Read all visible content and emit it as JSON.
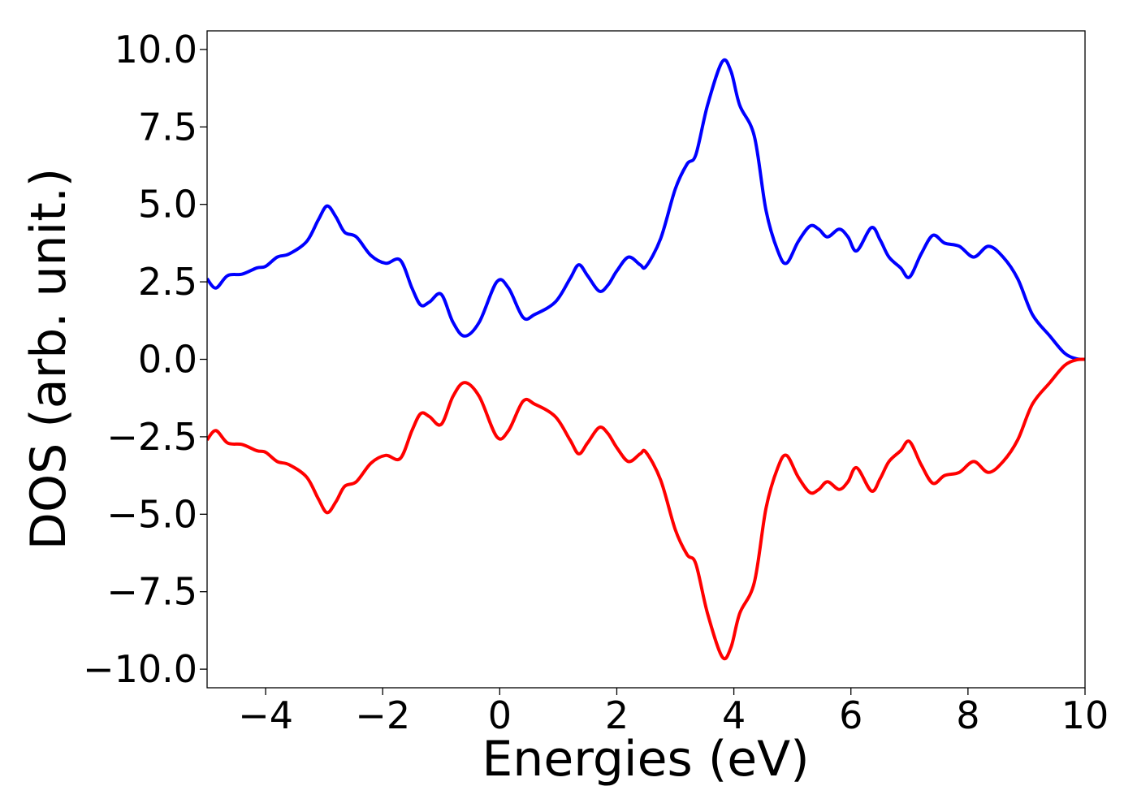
{
  "chart_data": {
    "type": "line",
    "title": "",
    "xlabel": "Energies (eV)",
    "ylabel": "DOS (arb. unit.)",
    "xlim": [
      -5,
      10
    ],
    "ylim": [
      -10.6,
      10.6
    ],
    "xticks": [
      -4,
      -2,
      0,
      2,
      4,
      6,
      8,
      10
    ],
    "xtick_labels": [
      "−4",
      "−2",
      "0",
      "2",
      "4",
      "6",
      "8",
      "10"
    ],
    "yticks": [
      10.0,
      7.5,
      5.0,
      2.5,
      0.0,
      -2.5,
      -5.0,
      -7.5,
      -10.0
    ],
    "ytick_labels": [
      "10.0",
      "7.5",
      "5.0",
      "2.5",
      "0.0",
      "−2.5",
      "−5.0",
      "−7.5",
      "−10.0"
    ],
    "grid": false,
    "legend": "none",
    "series": [
      {
        "color": "#0000ff",
        "points": [
          [
            -5.0,
            2.6
          ],
          [
            -4.85,
            2.3
          ],
          [
            -4.65,
            2.7
          ],
          [
            -4.4,
            2.75
          ],
          [
            -4.15,
            2.95
          ],
          [
            -4.0,
            3.0
          ],
          [
            -3.8,
            3.3
          ],
          [
            -3.6,
            3.4
          ],
          [
            -3.3,
            3.8
          ],
          [
            -3.1,
            4.5
          ],
          [
            -2.95,
            4.95
          ],
          [
            -2.8,
            4.6
          ],
          [
            -2.65,
            4.1
          ],
          [
            -2.45,
            3.95
          ],
          [
            -2.2,
            3.35
          ],
          [
            -1.95,
            3.1
          ],
          [
            -1.7,
            3.2
          ],
          [
            -1.5,
            2.3
          ],
          [
            -1.35,
            1.75
          ],
          [
            -1.2,
            1.85
          ],
          [
            -1.0,
            2.1
          ],
          [
            -0.8,
            1.2
          ],
          [
            -0.6,
            0.75
          ],
          [
            -0.35,
            1.2
          ],
          [
            -0.05,
            2.5
          ],
          [
            0.15,
            2.3
          ],
          [
            0.4,
            1.35
          ],
          [
            0.6,
            1.45
          ],
          [
            0.95,
            1.85
          ],
          [
            1.2,
            2.6
          ],
          [
            1.35,
            3.05
          ],
          [
            1.5,
            2.7
          ],
          [
            1.7,
            2.2
          ],
          [
            1.85,
            2.4
          ],
          [
            2.0,
            2.85
          ],
          [
            2.2,
            3.3
          ],
          [
            2.4,
            3.05
          ],
          [
            2.5,
            3.0
          ],
          [
            2.75,
            3.9
          ],
          [
            3.0,
            5.5
          ],
          [
            3.2,
            6.3
          ],
          [
            3.35,
            6.6
          ],
          [
            3.55,
            8.2
          ],
          [
            3.8,
            9.6
          ],
          [
            3.95,
            9.3
          ],
          [
            4.1,
            8.2
          ],
          [
            4.35,
            7.2
          ],
          [
            4.55,
            4.8
          ],
          [
            4.75,
            3.5
          ],
          [
            4.9,
            3.1
          ],
          [
            5.1,
            3.8
          ],
          [
            5.3,
            4.3
          ],
          [
            5.45,
            4.2
          ],
          [
            5.6,
            3.95
          ],
          [
            5.8,
            4.2
          ],
          [
            5.95,
            3.95
          ],
          [
            6.1,
            3.5
          ],
          [
            6.35,
            4.25
          ],
          [
            6.5,
            3.85
          ],
          [
            6.65,
            3.3
          ],
          [
            6.85,
            2.95
          ],
          [
            7.0,
            2.65
          ],
          [
            7.2,
            3.4
          ],
          [
            7.4,
            4.0
          ],
          [
            7.6,
            3.75
          ],
          [
            7.85,
            3.65
          ],
          [
            8.1,
            3.3
          ],
          [
            8.35,
            3.65
          ],
          [
            8.6,
            3.3
          ],
          [
            8.85,
            2.6
          ],
          [
            9.1,
            1.45
          ],
          [
            9.4,
            0.75
          ],
          [
            9.65,
            0.2
          ],
          [
            9.85,
            0.02
          ],
          [
            10.0,
            0.0
          ]
        ]
      },
      {
        "color": "#ff0000",
        "points": [
          [
            -5.0,
            -2.6
          ],
          [
            -4.85,
            -2.3
          ],
          [
            -4.65,
            -2.7
          ],
          [
            -4.4,
            -2.75
          ],
          [
            -4.15,
            -2.95
          ],
          [
            -4.0,
            -3.0
          ],
          [
            -3.8,
            -3.3
          ],
          [
            -3.6,
            -3.4
          ],
          [
            -3.3,
            -3.8
          ],
          [
            -3.1,
            -4.5
          ],
          [
            -2.95,
            -4.95
          ],
          [
            -2.8,
            -4.6
          ],
          [
            -2.65,
            -4.1
          ],
          [
            -2.45,
            -3.95
          ],
          [
            -2.2,
            -3.35
          ],
          [
            -1.95,
            -3.1
          ],
          [
            -1.7,
            -3.2
          ],
          [
            -1.5,
            -2.3
          ],
          [
            -1.35,
            -1.75
          ],
          [
            -1.2,
            -1.85
          ],
          [
            -1.0,
            -2.1
          ],
          [
            -0.8,
            -1.2
          ],
          [
            -0.6,
            -0.75
          ],
          [
            -0.35,
            -1.2
          ],
          [
            -0.05,
            -2.5
          ],
          [
            0.15,
            -2.3
          ],
          [
            0.4,
            -1.35
          ],
          [
            0.6,
            -1.45
          ],
          [
            0.95,
            -1.85
          ],
          [
            1.2,
            -2.6
          ],
          [
            1.35,
            -3.05
          ],
          [
            1.5,
            -2.7
          ],
          [
            1.7,
            -2.2
          ],
          [
            1.85,
            -2.4
          ],
          [
            2.0,
            -2.85
          ],
          [
            2.2,
            -3.3
          ],
          [
            2.4,
            -3.05
          ],
          [
            2.5,
            -3.0
          ],
          [
            2.75,
            -3.9
          ],
          [
            3.0,
            -5.5
          ],
          [
            3.2,
            -6.3
          ],
          [
            3.35,
            -6.6
          ],
          [
            3.55,
            -8.2
          ],
          [
            3.8,
            -9.6
          ],
          [
            3.95,
            -9.3
          ],
          [
            4.1,
            -8.2
          ],
          [
            4.35,
            -7.2
          ],
          [
            4.55,
            -4.8
          ],
          [
            4.75,
            -3.5
          ],
          [
            4.9,
            -3.1
          ],
          [
            5.1,
            -3.8
          ],
          [
            5.3,
            -4.3
          ],
          [
            5.45,
            -4.2
          ],
          [
            5.6,
            -3.95
          ],
          [
            5.8,
            -4.2
          ],
          [
            5.95,
            -3.95
          ],
          [
            6.1,
            -3.5
          ],
          [
            6.35,
            -4.25
          ],
          [
            6.5,
            -3.85
          ],
          [
            6.65,
            -3.3
          ],
          [
            6.85,
            -2.95
          ],
          [
            7.0,
            -2.65
          ],
          [
            7.2,
            -3.4
          ],
          [
            7.4,
            -4.0
          ],
          [
            7.6,
            -3.75
          ],
          [
            7.85,
            -3.65
          ],
          [
            8.1,
            -3.3
          ],
          [
            8.35,
            -3.65
          ],
          [
            8.6,
            -3.3
          ],
          [
            8.85,
            -2.6
          ],
          [
            9.1,
            -1.45
          ],
          [
            9.4,
            -0.75
          ],
          [
            9.65,
            -0.2
          ],
          [
            9.85,
            -0.02
          ],
          [
            10.0,
            0.0
          ]
        ]
      }
    ]
  }
}
